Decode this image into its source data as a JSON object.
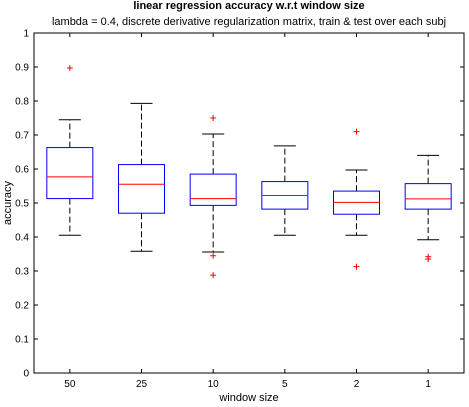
{
  "chart_data": {
    "type": "boxplot",
    "title": "linear regression accuracy w.r.t window size",
    "subtitle": "lambda = 0.4, discrete derivative regularization matrix, train & test over each subj",
    "xlabel": "window size",
    "ylabel": "accuracy",
    "ylim": [
      0,
      1
    ],
    "yticks": [
      0,
      0.1,
      0.2,
      0.3,
      0.4,
      0.5,
      0.6,
      0.7,
      0.8,
      0.9,
      1
    ],
    "grid": false,
    "categories": [
      "50",
      "25",
      "10",
      "5",
      "2",
      "1"
    ],
    "boxes": [
      {
        "category": "50",
        "whisker_low": 0.405,
        "q1": 0.513,
        "median": 0.577,
        "q3": 0.663,
        "whisker_high": 0.745,
        "outliers": [
          0.897
        ]
      },
      {
        "category": "25",
        "whisker_low": 0.358,
        "q1": 0.47,
        "median": 0.555,
        "q3": 0.613,
        "whisker_high": 0.793,
        "outliers": []
      },
      {
        "category": "10",
        "whisker_low": 0.356,
        "q1": 0.493,
        "median": 0.513,
        "q3": 0.585,
        "whisker_high": 0.703,
        "outliers": [
          0.75,
          0.345,
          0.288
        ]
      },
      {
        "category": "5",
        "whisker_low": 0.405,
        "q1": 0.482,
        "median": 0.522,
        "q3": 0.563,
        "whisker_high": 0.668,
        "outliers": []
      },
      {
        "category": "2",
        "whisker_low": 0.405,
        "q1": 0.467,
        "median": 0.502,
        "q3": 0.535,
        "whisker_high": 0.597,
        "outliers": [
          0.71,
          0.313
        ]
      },
      {
        "category": "1",
        "whisker_low": 0.392,
        "q1": 0.482,
        "median": 0.512,
        "q3": 0.557,
        "whisker_high": 0.64,
        "outliers": [
          0.342,
          0.335
        ]
      }
    ],
    "colors": {
      "box": "#0000ff",
      "median": "#ff0000",
      "whisker": "#000000",
      "outlier": "#ff0000",
      "axes": "#000000"
    }
  }
}
